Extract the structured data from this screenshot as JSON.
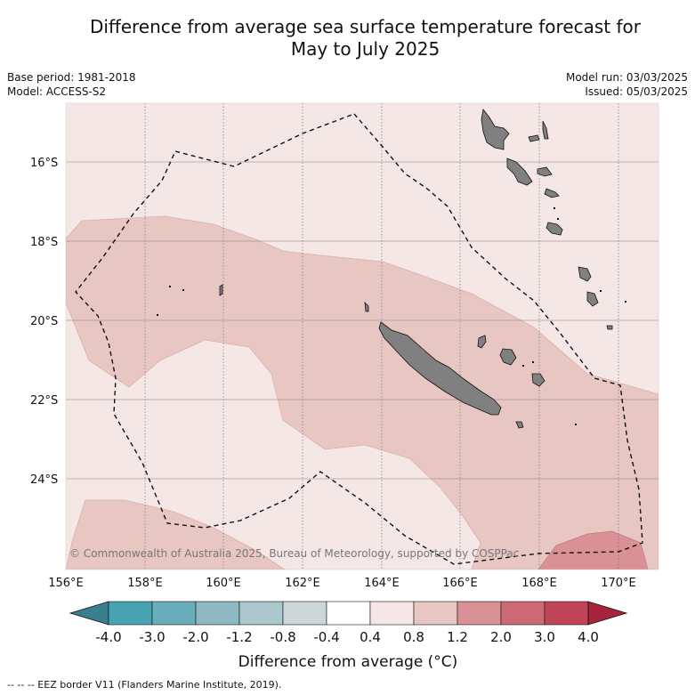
{
  "title_line1": "Difference from average sea surface temperature forecast for",
  "title_line2": "May to July 2025",
  "base_period": "Base period: 1981-2018",
  "model": "Model: ACCESS-S2",
  "model_run": "Model run: 03/03/2025",
  "issued": "Issued: 05/03/2025",
  "copyright": "© Commonwealth of Australia 2025, Bureau of Meteorology, supported by COSPPac",
  "lon_ticks": [
    "156°E",
    "158°E",
    "160°E",
    "162°E",
    "164°E",
    "166°E",
    "168°E",
    "170°E"
  ],
  "lat_ticks": [
    "16°S",
    "18°S",
    "20°S",
    "22°S",
    "24°S"
  ],
  "colorbar": {
    "title": "Difference from average (°C)",
    "tick_labels": [
      "-4.0",
      "-3.0",
      "-2.0",
      "-1.2",
      "-0.8",
      "-0.4",
      "0.4",
      "0.8",
      "1.2",
      "2.0",
      "3.0",
      "4.0"
    ],
    "colors": [
      "#3b7f8f",
      "#48a3b2",
      "#6aadbb",
      "#8eb9c3",
      "#aac7cb",
      "#cdd6d8",
      "#ffffff",
      "#f5e7e5",
      "#e8c6c1",
      "#d99196",
      "#cd6a75",
      "#bf4557",
      "#a6243c"
    ]
  },
  "footnote": "-- -- -- EEZ border V11 (Flanders Marine Institute, 2019)."
}
